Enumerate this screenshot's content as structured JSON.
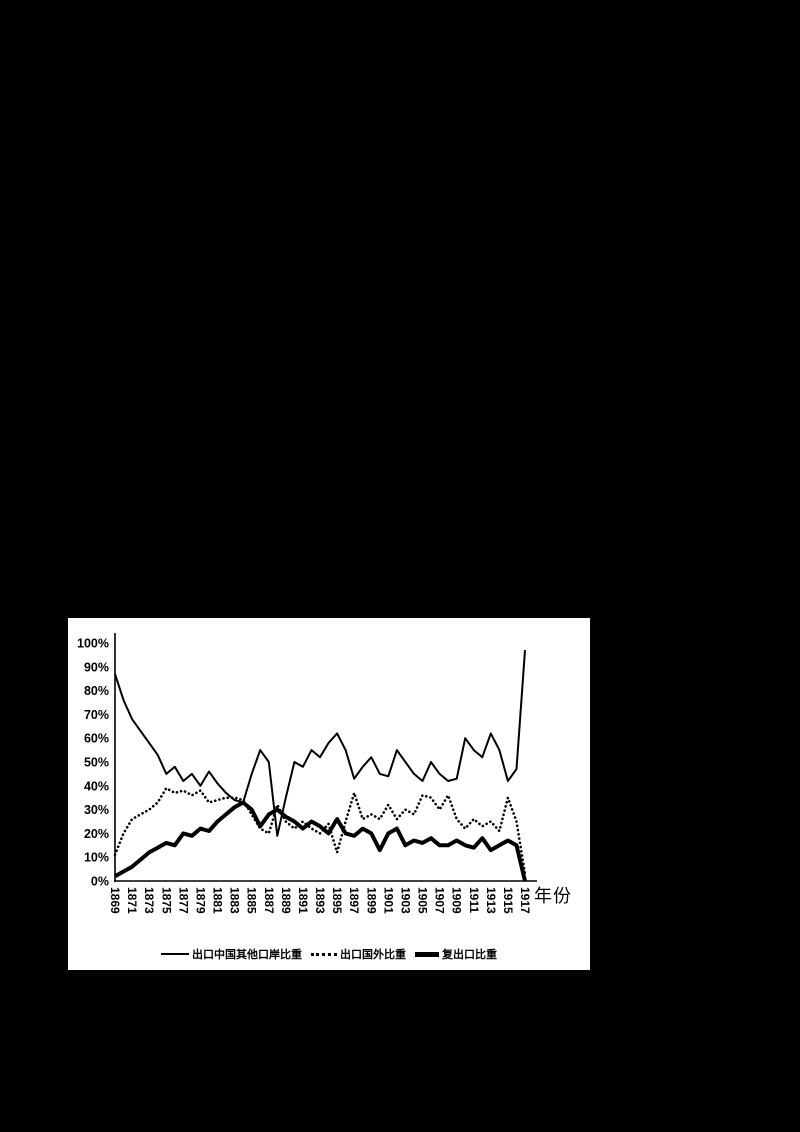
{
  "page": {
    "background_color": "#000000",
    "panel_color": "#ffffff"
  },
  "chart_data": {
    "type": "line",
    "title": "",
    "xlabel": "年份",
    "ylabel": "",
    "ylim": [
      0,
      100
    ],
    "grid": false,
    "legend_position": "bottom",
    "line_color": "#000000",
    "y_tick_labels": [
      "0%",
      "10%",
      "20%",
      "30%",
      "40%",
      "50%",
      "60%",
      "70%",
      "80%",
      "90%",
      "100%"
    ],
    "x_tick_labels": [
      "1869",
      "1871",
      "1873",
      "1875",
      "1877",
      "1879",
      "1881",
      "1883",
      "1885",
      "1887",
      "1889",
      "1891",
      "1893",
      "1895",
      "1897",
      "1899",
      "1901",
      "1903",
      "1905",
      "1907",
      "1909",
      "1911",
      "1913",
      "1915",
      "1917"
    ],
    "x": [
      1869,
      1870,
      1871,
      1872,
      1873,
      1874,
      1875,
      1876,
      1877,
      1878,
      1879,
      1880,
      1881,
      1882,
      1883,
      1884,
      1885,
      1886,
      1887,
      1888,
      1889,
      1890,
      1891,
      1892,
      1893,
      1894,
      1895,
      1896,
      1897,
      1898,
      1899,
      1900,
      1901,
      1902,
      1903,
      1904,
      1905,
      1906,
      1907,
      1908,
      1909,
      1910,
      1911,
      1912,
      1913,
      1914,
      1915,
      1916,
      1917
    ],
    "series": [
      {
        "name": "出口中国其他口岸比重",
        "style": "solid-thin",
        "values": [
          87,
          76,
          68,
          63,
          58,
          53,
          45,
          48,
          42,
          45,
          40,
          46,
          41,
          37,
          34,
          33,
          45,
          55,
          50,
          19,
          35,
          50,
          48,
          55,
          52,
          58,
          62,
          55,
          43,
          48,
          52,
          45,
          44,
          55,
          50,
          45,
          42,
          50,
          45,
          42,
          43,
          60,
          55,
          52,
          62,
          55,
          42,
          47,
          97
        ]
      },
      {
        "name": "出口国外比重",
        "style": "dotted",
        "values": [
          11,
          20,
          26,
          28,
          30,
          33,
          39,
          37,
          38,
          36,
          38,
          33,
          34,
          35,
          35,
          34,
          28,
          22,
          20,
          32,
          25,
          22,
          25,
          22,
          20,
          24,
          12,
          25,
          37,
          26,
          28,
          26,
          32,
          26,
          30,
          28,
          36,
          35,
          30,
          36,
          26,
          22,
          26,
          23,
          25,
          21,
          35,
          25,
          3
        ]
      },
      {
        "name": "复出口比重",
        "style": "solid-thick",
        "values": [
          2,
          4,
          6,
          9,
          12,
          14,
          16,
          15,
          20,
          19,
          22,
          21,
          25,
          28,
          31,
          33,
          30,
          23,
          28,
          30,
          27,
          25,
          22,
          25,
          23,
          20,
          26,
          20,
          19,
          22,
          20,
          13,
          20,
          22,
          15,
          17,
          16,
          18,
          15,
          15,
          17,
          15,
          14,
          18,
          13,
          15,
          17,
          15,
          0
        ]
      }
    ]
  }
}
